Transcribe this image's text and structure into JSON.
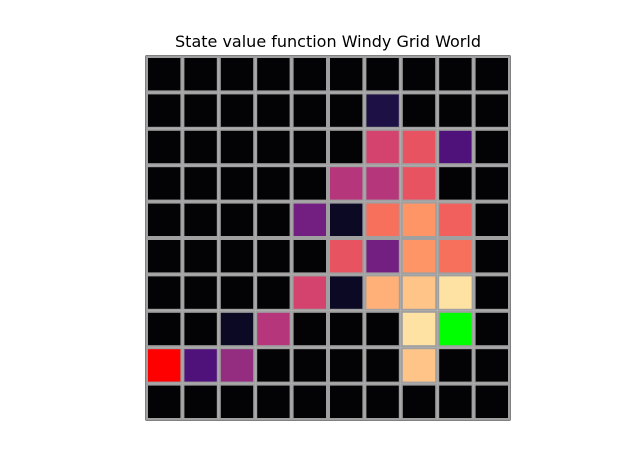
{
  "chart_data": {
    "type": "heatmap",
    "title": "State value function Windy Grid World",
    "rows": 10,
    "cols": 10,
    "grid_line_color": "#a0a0a0",
    "cells": [
      [
        "#030305",
        "#030305",
        "#030305",
        "#030305",
        "#030305",
        "#030305",
        "#030305",
        "#030305",
        "#030305",
        "#030305"
      ],
      [
        "#030305",
        "#030305",
        "#030305",
        "#030305",
        "#030305",
        "#030305",
        "#1c1044",
        "#030305",
        "#030305",
        "#030305"
      ],
      [
        "#030305",
        "#030305",
        "#030305",
        "#030305",
        "#030305",
        "#030305",
        "#d3436e",
        "#e85362",
        "#4f127b",
        "#030305"
      ],
      [
        "#030305",
        "#030305",
        "#030305",
        "#030305",
        "#030305",
        "#b5367a",
        "#b5367a",
        "#e85362",
        "#030305",
        "#030305"
      ],
      [
        "#030305",
        "#030305",
        "#030305",
        "#030305",
        "#721f81",
        "#0b0924",
        "#f7705c",
        "#fd9567",
        "#f1605d",
        "#030305"
      ],
      [
        "#030305",
        "#030305",
        "#030305",
        "#030305",
        "#030305",
        "#e85362",
        "#721f81",
        "#fd9567",
        "#f7705c",
        "#030305"
      ],
      [
        "#030305",
        "#030305",
        "#030305",
        "#030305",
        "#d3436e",
        "#0b0924",
        "#feb078",
        "#fec488",
        "#fde2a3",
        "#030305"
      ],
      [
        "#030305",
        "#030305",
        "#0b0924",
        "#b5367a",
        "#030305",
        "#030305",
        "#030305",
        "#fde2a3",
        "#00ff00",
        "#030305"
      ],
      [
        "#ff0000",
        "#4f127b",
        "#942c80",
        "#030305",
        "#030305",
        "#030305",
        "#030305",
        "#fec488",
        "#030305",
        "#030305"
      ],
      [
        "#030305",
        "#030305",
        "#030305",
        "#030305",
        "#030305",
        "#030305",
        "#030305",
        "#030305",
        "#030305",
        "#030305"
      ]
    ]
  }
}
